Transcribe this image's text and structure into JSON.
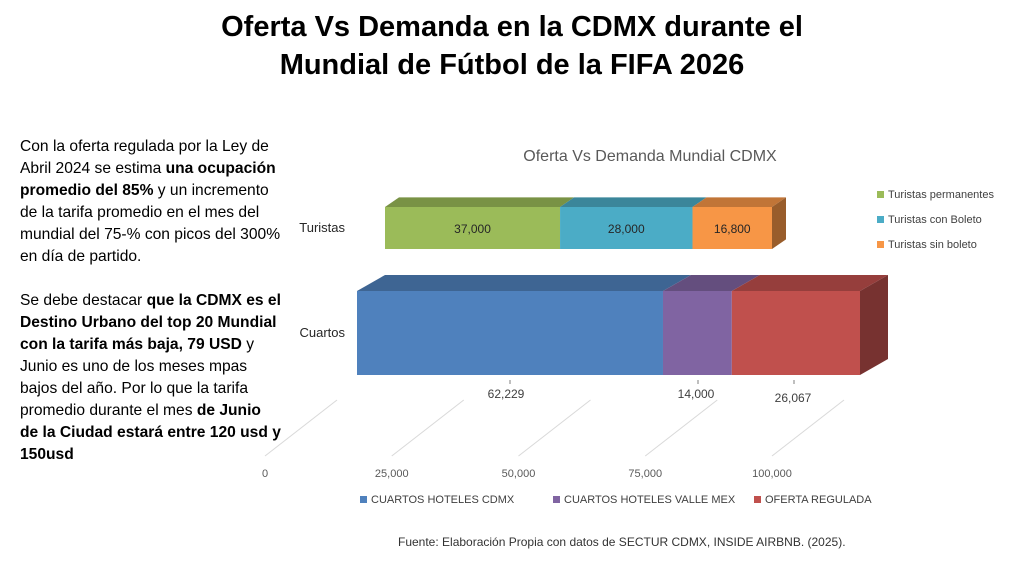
{
  "page_title": [
    "Oferta Vs Demanda en la CDMX durante el",
    "Mundial de Fútbol de la FIFA 2026"
  ],
  "left_text": {
    "p1": [
      {
        "t": "Con la oferta regulada por la Ley de Abril 2024 se estima ",
        "b": false
      },
      {
        "t": "una ocupación promedio del 85%",
        "b": true
      },
      {
        "t": " y un incremento de la tarifa promedio en el mes del mundial del 75-% con picos del 300% en día de partido.",
        "b": false
      }
    ],
    "p2": [
      {
        "t": "Se debe destacar ",
        "b": false
      },
      {
        "t": "que la CDMX es el Destino Urbano del top 20 Mundial con la tarifa más baja, 79 USD",
        "b": true
      },
      {
        "t": " y Junio es uno de los meses mpas bajos del año. Por lo que la tarifa promedio durante el mes ",
        "b": false
      },
      {
        "t": "de Junio de la Ciudad estará entre 120 usd y 150usd",
        "b": true
      }
    ]
  },
  "source": "Fuente: Elaboración Propia con datos de SECTUR CDMX, INSIDE AIRBNB. (2025).",
  "chart_data": {
    "type": "bar",
    "orientation": "horizontal-stacked-3d",
    "title": "Oferta Vs Demanda Mundial CDMX",
    "xlim": [
      0,
      100000
    ],
    "xticks": [
      0,
      25000,
      50000,
      75000,
      100000
    ],
    "xtick_labels": [
      "0",
      "25,000",
      "50,000",
      "75,000",
      "100,000"
    ],
    "categories": [
      {
        "label": "Turistas",
        "segments": [
          {
            "name": "Turistas permanentes",
            "value": 37000,
            "label": "37,000",
            "color": "#9BBB59"
          },
          {
            "name": "Turistas con Boleto",
            "value": 28000,
            "label": "28,000",
            "color": "#4BACC6"
          },
          {
            "name": "Turistas sin boleto",
            "value": 16800,
            "label": "16,800",
            "color": "#F79646"
          }
        ]
      },
      {
        "label": "Cuartos",
        "segments": [
          {
            "name": "CUARTOS HOTELES CDMX",
            "value": 62229,
            "label": "62,229",
            "color": "#4F81BD"
          },
          {
            "name": "CUARTOS HOTELES VALLE MEX",
            "value": 14000,
            "label": "14,000",
            "color": "#8064A2"
          },
          {
            "name": "OFERTA REGULADA",
            "value": 26067,
            "label": "26,067",
            "color": "#C0504D"
          }
        ]
      }
    ],
    "legend_right": [
      "Turistas permanentes",
      "Turistas con Boleto",
      "Turistas sin boleto"
    ],
    "legend_bottom": [
      "CUARTOS HOTELES CDMX",
      "CUARTOS HOTELES VALLE MEX",
      "OFERTA REGULADA"
    ]
  }
}
